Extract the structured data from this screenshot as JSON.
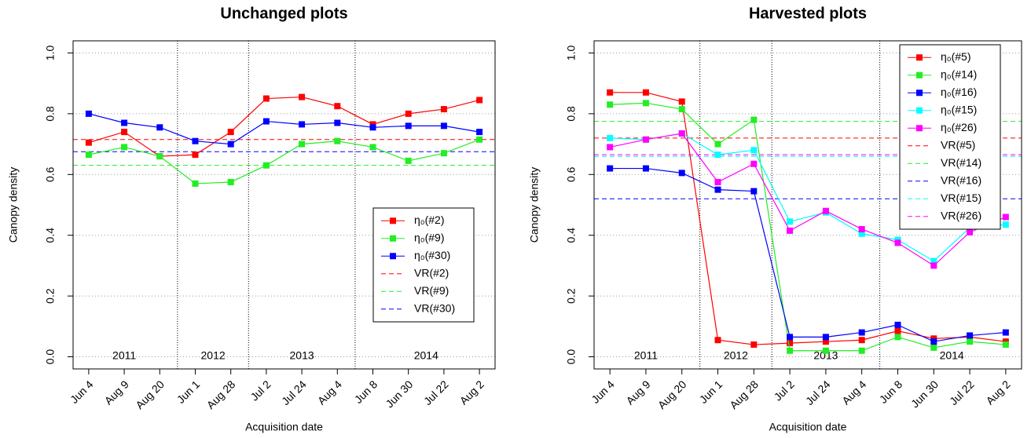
{
  "chart_data": [
    {
      "type": "line",
      "title": "Unchanged plots",
      "xlabel": "Acquisition date",
      "ylabel": "Canopy density",
      "categories": [
        "Jun 4",
        "Aug 9",
        "Aug 20",
        "Jun 1",
        "Aug 28",
        "Jul 2",
        "Jul 24",
        "Aug 4",
        "Jun 8",
        "Jun 30",
        "Jul 22",
        "Aug 2"
      ],
      "year_labels": [
        "2011",
        "2012",
        "2013",
        "2014"
      ],
      "year_starts": [
        0,
        3,
        5,
        8
      ],
      "ylim": [
        -0.04,
        1.04
      ],
      "yticks": [
        {
          "value": 0,
          "label": "0.0"
        },
        0.2,
        0.4,
        0.6,
        0.8,
        {
          "value": 1,
          "label": "1.0"
        }
      ],
      "grid": true,
      "legend": "bottomright",
      "series": [
        {
          "name": "η₀(#2)",
          "color": "#ff0000",
          "values": [
            0.705,
            0.74,
            0.66,
            0.665,
            0.74,
            0.85,
            0.855,
            0.825,
            0.765,
            0.8,
            0.815,
            0.845
          ]
        },
        {
          "name": "η₀(#9)",
          "color": "#22ee22",
          "values": [
            0.665,
            0.69,
            0.66,
            0.57,
            0.575,
            0.63,
            0.7,
            0.71,
            0.69,
            0.645,
            0.67,
            0.715
          ]
        },
        {
          "name": "η₀(#30)",
          "color": "#0000ff",
          "values": [
            0.8,
            0.77,
            0.755,
            0.71,
            0.7,
            0.775,
            0.765,
            0.77,
            0.755,
            0.76,
            0.76,
            0.74
          ]
        }
      ],
      "reference_lines": [
        {
          "name": "VR(#2)",
          "color": "#ff0000",
          "value": 0.715
        },
        {
          "name": "VR(#9)",
          "color": "#22ee22",
          "value": 0.63
        },
        {
          "name": "VR(#30)",
          "color": "#0000ff",
          "value": 0.675
        }
      ]
    },
    {
      "type": "line",
      "title": "Harvested plots",
      "xlabel": "Acquisition date",
      "ylabel": "Canopy density",
      "categories": [
        "Jun 4",
        "Aug 9",
        "Aug 20",
        "Jun 1",
        "Aug 28",
        "Jul 2",
        "Jul 24",
        "Aug 4",
        "Jun 8",
        "Jun 30",
        "Jul 22",
        "Aug 2"
      ],
      "year_labels": [
        "2011",
        "2012",
        "2013",
        "2014"
      ],
      "year_starts": [
        0,
        3,
        5,
        8
      ],
      "ylim": [
        -0.04,
        1.04
      ],
      "yticks": [
        {
          "value": 0,
          "label": "0.0"
        },
        0.2,
        0.4,
        0.6,
        0.8,
        {
          "value": 1,
          "label": "1.0"
        }
      ],
      "grid": true,
      "legend": "topright",
      "series": [
        {
          "name": "η₀(#5)",
          "color": "#ff0000",
          "values": [
            0.87,
            0.87,
            0.84,
            0.055,
            0.04,
            0.045,
            0.05,
            0.055,
            0.085,
            0.06,
            0.065,
            0.05
          ]
        },
        {
          "name": "η₀(#14)",
          "color": "#22ee22",
          "values": [
            0.83,
            0.835,
            0.815,
            0.7,
            0.78,
            0.02,
            0.02,
            0.02,
            0.065,
            0.03,
            0.05,
            0.04
          ]
        },
        {
          "name": "η₀(#16)",
          "color": "#0000ff",
          "values": [
            0.62,
            0.62,
            0.605,
            0.55,
            0.545,
            0.065,
            0.065,
            0.08,
            0.105,
            0.05,
            0.07,
            0.08
          ]
        },
        {
          "name": "η₀(#15)",
          "color": "#00ffff",
          "values": [
            0.72,
            0.715,
            0.735,
            0.665,
            0.68,
            0.445,
            0.475,
            0.405,
            0.385,
            0.315,
            0.425,
            0.435
          ]
        },
        {
          "name": "η₀(#26)",
          "color": "#ff00ff",
          "values": [
            0.69,
            0.715,
            0.735,
            0.575,
            0.635,
            0.415,
            0.48,
            0.42,
            0.375,
            0.3,
            0.41,
            0.46
          ]
        }
      ],
      "reference_lines": [
        {
          "name": "VR(#5)",
          "color": "#ff0000",
          "value": 0.72
        },
        {
          "name": "VR(#14)",
          "color": "#22ee22",
          "value": 0.775
        },
        {
          "name": "VR(#16)",
          "color": "#0000ff",
          "value": 0.52
        },
        {
          "name": "VR(#15)",
          "color": "#00ffff",
          "value": 0.66
        },
        {
          "name": "VR(#26)",
          "color": "#ff00ff",
          "value": 0.665
        }
      ]
    }
  ]
}
